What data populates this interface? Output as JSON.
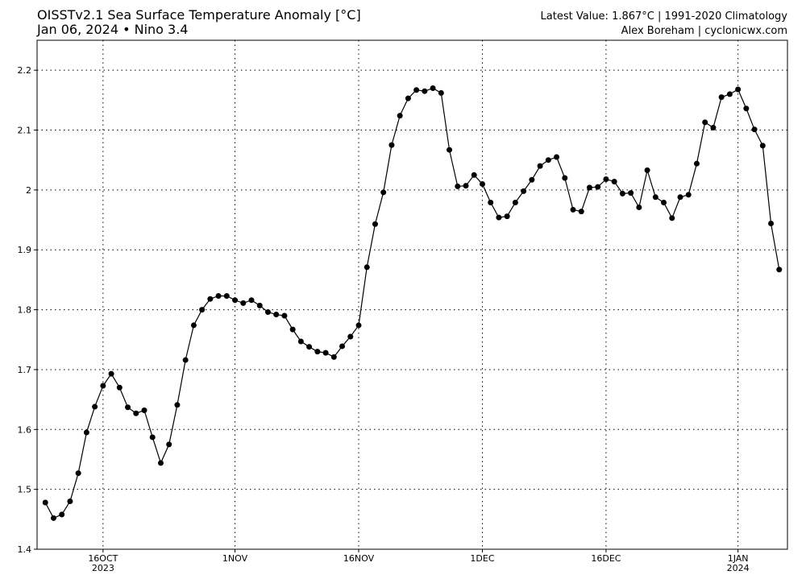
{
  "chart_data": {
    "type": "line",
    "title": "OISSTv2.1 Sea Surface Temperature Anomaly [°C]",
    "subtitle": "Jan 06, 2024 • Nino 3.4",
    "right_title": "Latest Value: 1.867°C | 1991-2020 Climatology",
    "credit": "Alex Boreham | cyclonicwx.com",
    "x": [
      "2023-10-09",
      "2023-10-10",
      "2023-10-11",
      "2023-10-12",
      "2023-10-13",
      "2023-10-14",
      "2023-10-15",
      "2023-10-16",
      "2023-10-17",
      "2023-10-18",
      "2023-10-19",
      "2023-10-20",
      "2023-10-21",
      "2023-10-22",
      "2023-10-23",
      "2023-10-24",
      "2023-10-25",
      "2023-10-26",
      "2023-10-27",
      "2023-10-28",
      "2023-10-29",
      "2023-10-30",
      "2023-10-31",
      "2023-11-01",
      "2023-11-02",
      "2023-11-03",
      "2023-11-04",
      "2023-11-05",
      "2023-11-06",
      "2023-11-07",
      "2023-11-08",
      "2023-11-09",
      "2023-11-10",
      "2023-11-11",
      "2023-11-12",
      "2023-11-13",
      "2023-11-14",
      "2023-11-15",
      "2023-11-16",
      "2023-11-17",
      "2023-11-18",
      "2023-11-19",
      "2023-11-20",
      "2023-11-21",
      "2023-11-22",
      "2023-11-23",
      "2023-11-24",
      "2023-11-25",
      "2023-11-26",
      "2023-11-27",
      "2023-11-28",
      "2023-11-29",
      "2023-11-30",
      "2023-12-01",
      "2023-12-02",
      "2023-12-03",
      "2023-12-04",
      "2023-12-05",
      "2023-12-06",
      "2023-12-07",
      "2023-12-08",
      "2023-12-09",
      "2023-12-10",
      "2023-12-11",
      "2023-12-12",
      "2023-12-13",
      "2023-12-14",
      "2023-12-15",
      "2023-12-16",
      "2023-12-17",
      "2023-12-18",
      "2023-12-19",
      "2023-12-20",
      "2023-12-21",
      "2023-12-22",
      "2023-12-23",
      "2023-12-24",
      "2023-12-25",
      "2023-12-26",
      "2023-12-27",
      "2023-12-28",
      "2023-12-29",
      "2023-12-30",
      "2023-12-31",
      "2024-01-01",
      "2024-01-02",
      "2024-01-03",
      "2024-01-04",
      "2024-01-05",
      "2024-01-06"
    ],
    "series": [
      {
        "color": "#000000",
        "values": [
          1.478,
          1.452,
          1.458,
          1.48,
          1.527,
          1.595,
          1.638,
          1.673,
          1.693,
          1.67,
          1.637,
          1.627,
          1.632,
          1.587,
          1.544,
          1.575,
          1.641,
          1.716,
          1.774,
          1.8,
          1.818,
          1.823,
          1.823,
          1.816,
          1.811,
          1.816,
          1.807,
          1.796,
          1.792,
          1.79,
          1.767,
          1.747,
          1.738,
          1.73,
          1.728,
          1.721,
          1.739,
          1.755,
          1.774,
          1.871,
          1.943,
          1.996,
          2.075,
          2.124,
          2.153,
          2.167,
          2.165,
          2.17,
          2.162,
          2.067,
          2.006,
          2.007,
          2.025,
          2.01,
          1.979,
          1.954,
          1.956,
          1.979,
          1.998,
          2.017,
          2.04,
          2.05,
          2.055,
          2.02,
          1.967,
          1.964,
          2.004,
          2.005,
          2.018,
          2.014,
          1.994,
          1.995,
          1.971,
          2.033,
          1.988,
          1.979,
          1.953,
          1.988,
          1.992,
          2.044,
          2.113,
          2.104,
          2.155,
          2.16,
          2.168,
          2.136,
          2.101,
          2.074,
          1.944,
          1.867
        ]
      }
    ],
    "xlim": [
      "2023-10-08",
      "2024-01-07"
    ],
    "xticks": [
      {
        "value": "2023-10-16",
        "label": "16OCT",
        "year": "2023"
      },
      {
        "value": "2023-11-01",
        "label": "1NOV"
      },
      {
        "value": "2023-11-16",
        "label": "16NOV"
      },
      {
        "value": "2023-12-01",
        "label": "1DEC"
      },
      {
        "value": "2023-12-16",
        "label": "16DEC"
      },
      {
        "value": "2024-01-01",
        "label": "1JAN",
        "year": "2024"
      }
    ],
    "ylim": [
      1.4,
      2.25
    ],
    "yticks": [
      1.4,
      1.5,
      1.6,
      1.7,
      1.8,
      1.9,
      2,
      2.1,
      2.2
    ],
    "grid": true
  }
}
